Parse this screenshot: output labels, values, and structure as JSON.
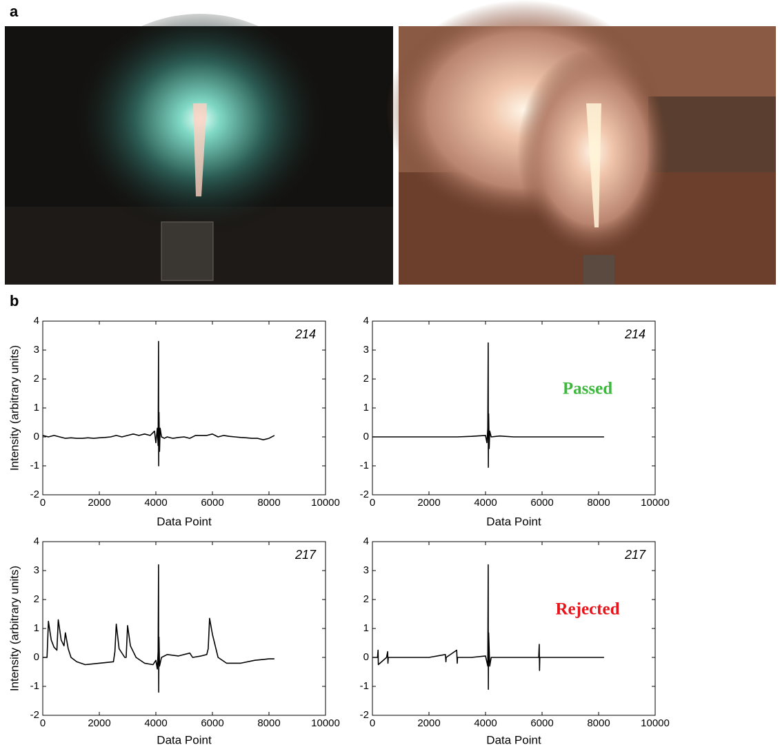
{
  "labels": [
    "a",
    "b"
  ],
  "chart_data": [
    {
      "type": "line",
      "ylabel": "Intensity (arbitrary units)",
      "xlabel": "Data Point",
      "annotations": [
        {
          "text": "214"
        }
      ],
      "xlim": [
        0,
        10000
      ],
      "ylim": [
        -2,
        4
      ],
      "xticks": [
        0,
        2000,
        4000,
        6000,
        8000,
        10000
      ],
      "yticks": [
        -2,
        -1,
        0,
        1,
        2,
        3,
        4
      ],
      "color": "#000000",
      "x": [
        0,
        200,
        400,
        600,
        800,
        1000,
        1200,
        1400,
        1600,
        1800,
        2000,
        2200,
        2400,
        2600,
        2800,
        3000,
        3200,
        3400,
        3600,
        3800,
        3950,
        4000,
        4050,
        4080,
        4096,
        4100,
        4110,
        4130,
        4150,
        4200,
        4300,
        4400,
        4600,
        4800,
        5000,
        5200,
        5400,
        5600,
        5800,
        6000,
        6200,
        6400,
        6600,
        6800,
        7000,
        7200,
        7400,
        7600,
        7800,
        8000,
        8192
      ],
      "values": [
        0.05,
        0.0,
        0.05,
        0.0,
        -0.05,
        -0.03,
        -0.05,
        -0.05,
        -0.03,
        -0.05,
        -0.03,
        -0.02,
        0.0,
        0.05,
        0.0,
        0.05,
        0.1,
        0.05,
        0.1,
        0.05,
        0.2,
        -0.2,
        0.3,
        -0.3,
        3.3,
        -1.0,
        0.85,
        -0.5,
        0.3,
        0.0,
        -0.05,
        0.0,
        -0.05,
        -0.02,
        0,
        -0.05,
        0.05,
        0.05,
        0.05,
        0.1,
        0,
        0.05,
        0.02,
        0,
        -0.02,
        -0.03,
        -0.05,
        -0.05,
        -0.1,
        -0.05,
        0.05
      ]
    },
    {
      "type": "line",
      "xlabel": "Data Point",
      "annotations": [
        {
          "text": "214"
        },
        {
          "text": "Passed",
          "color": "#3cb83c"
        }
      ],
      "xlim": [
        0,
        10000
      ],
      "ylim": [
        -2,
        4
      ],
      "xticks": [
        0,
        2000,
        4000,
        6000,
        8000,
        10000
      ],
      "yticks": [
        -2,
        -1,
        0,
        1,
        2,
        3,
        4
      ],
      "color": "#000000",
      "x": [
        0,
        1000,
        2000,
        3000,
        3500,
        4000,
        4050,
        4080,
        4096,
        4100,
        4110,
        4130,
        4150,
        4200,
        4500,
        5000,
        6000,
        7000,
        8192
      ],
      "values": [
        0,
        0,
        0,
        0,
        0.02,
        0.05,
        -0.2,
        0.3,
        3.25,
        -1.05,
        0.8,
        -0.4,
        0.2,
        0,
        0.03,
        0,
        0,
        0,
        0
      ]
    },
    {
      "type": "line",
      "ylabel": "Intensity (arbitrary units)",
      "xlabel": "Data Point",
      "annotations": [
        {
          "text": "217"
        }
      ],
      "xlim": [
        0,
        10000
      ],
      "ylim": [
        -2,
        4
      ],
      "xticks": [
        0,
        2000,
        4000,
        6000,
        8000,
        10000
      ],
      "yticks": [
        -2,
        -1,
        0,
        1,
        2,
        3,
        4
      ],
      "color": "#000000",
      "x": [
        0,
        150,
        200,
        300,
        400,
        500,
        550,
        650,
        750,
        800,
        900,
        1000,
        1200,
        1500,
        2000,
        2500,
        2550,
        2600,
        2700,
        2900,
        2950,
        3000,
        3100,
        3300,
        3600,
        3900,
        4000,
        4050,
        4080,
        4096,
        4100,
        4110,
        4130,
        4200,
        4400,
        4800,
        5200,
        5300,
        5600,
        5800,
        5850,
        5900,
        6000,
        6200,
        6500,
        7000,
        7500,
        8000,
        8192
      ],
      "values": [
        0,
        0,
        1.25,
        0.6,
        0.35,
        0.25,
        1.3,
        0.6,
        0.4,
        0.85,
        0.3,
        0.0,
        -0.15,
        -0.25,
        -0.2,
        -0.15,
        0.2,
        1.15,
        0.3,
        0.0,
        0.0,
        1.1,
        0.4,
        0.0,
        -0.2,
        -0.25,
        -0.1,
        -0.4,
        0.2,
        3.2,
        -1.2,
        0.7,
        -0.3,
        0.0,
        0.1,
        0.05,
        0.15,
        0.0,
        0.05,
        0.1,
        0.3,
        1.35,
        0.8,
        0.0,
        -0.2,
        -0.2,
        -0.1,
        -0.05,
        -0.05
      ]
    },
    {
      "type": "line",
      "xlabel": "Data Point",
      "annotations": [
        {
          "text": "217"
        },
        {
          "text": "Rejected",
          "color": "#e8141b"
        }
      ],
      "xlim": [
        0,
        10000
      ],
      "ylim": [
        -2,
        4
      ],
      "xticks": [
        0,
        2000,
        4000,
        6000,
        8000,
        10000
      ],
      "yticks": [
        -2,
        -1,
        0,
        1,
        2,
        3,
        4
      ],
      "color": "#000000",
      "x": [
        0,
        180,
        200,
        210,
        500,
        540,
        550,
        560,
        1000,
        2000,
        2580,
        2600,
        2610,
        2980,
        3000,
        3010,
        3500,
        4000,
        4080,
        4096,
        4100,
        4110,
        4150,
        4200,
        5000,
        5880,
        5900,
        5910,
        5920,
        6500,
        7000,
        8192
      ],
      "values": [
        0,
        0,
        0.25,
        -0.25,
        0,
        0.2,
        -0.2,
        0,
        0,
        0,
        0.1,
        -0.15,
        0,
        0.25,
        -0.2,
        0,
        0,
        0.05,
        -0.3,
        3.2,
        -1.1,
        0.85,
        -0.3,
        0,
        0,
        0,
        0.45,
        -0.45,
        0,
        0,
        0,
        0
      ]
    }
  ]
}
